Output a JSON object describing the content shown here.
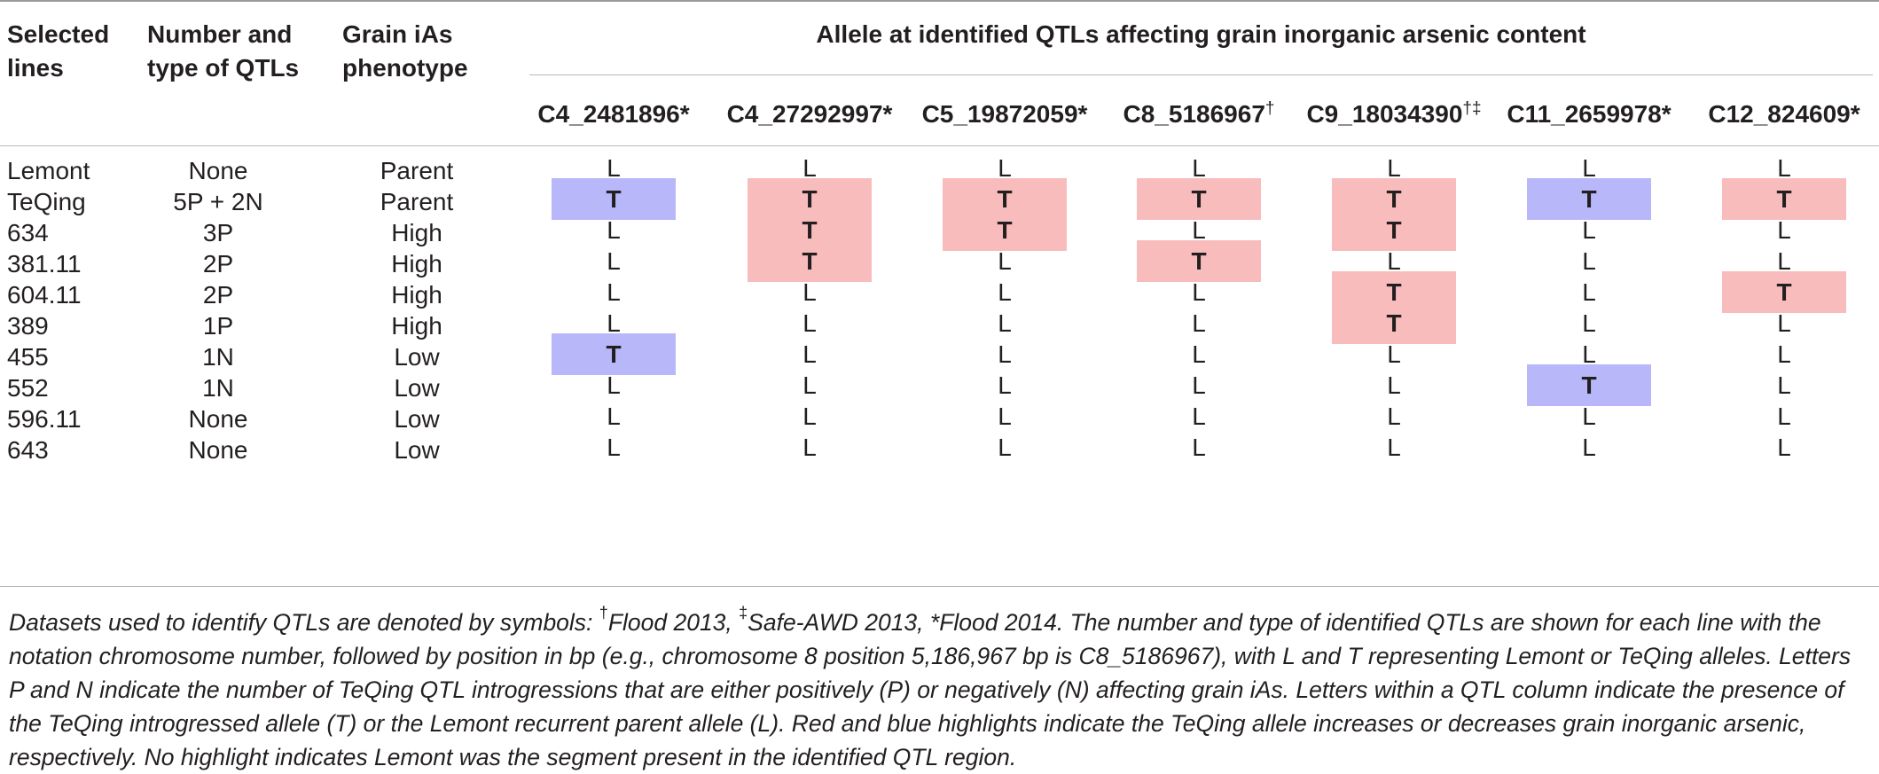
{
  "headers": {
    "selected_lines": "Selected\nlines",
    "qtl_number_type": "Number and\ntype of QTLs",
    "grain_phenotype": "Grain iAs\nphenotype",
    "allele_group": "Allele at identified QTLs affecting grain inorganic arsenic content",
    "columns": [
      {
        "name": "C4_2481896*",
        "mark": ""
      },
      {
        "name": "C4_27292997*",
        "mark": ""
      },
      {
        "name": "C5_19872059*",
        "mark": ""
      },
      {
        "name": "C8_5186967",
        "mark": "†"
      },
      {
        "name": "C9_18034390",
        "mark": "†‡"
      },
      {
        "name": "C11_2659978*",
        "mark": ""
      },
      {
        "name": "C12_824609*",
        "mark": ""
      }
    ]
  },
  "colors": {
    "red_highlight": "#f9bcbc",
    "blue_highlight": "#b7b7f9"
  },
  "rows": [
    {
      "line": "Lemont",
      "qtls": "None",
      "phenotype": "Parent",
      "alleles": [
        {
          "v": "L",
          "h": ""
        },
        {
          "v": "L",
          "h": ""
        },
        {
          "v": "L",
          "h": ""
        },
        {
          "v": "L",
          "h": ""
        },
        {
          "v": "L",
          "h": ""
        },
        {
          "v": "L",
          "h": ""
        },
        {
          "v": "L",
          "h": ""
        }
      ]
    },
    {
      "line": "TeQing",
      "qtls": "5P + 2N",
      "phenotype": "Parent",
      "alleles": [
        {
          "v": "T",
          "h": "blue"
        },
        {
          "v": "T",
          "h": "red"
        },
        {
          "v": "T",
          "h": "red"
        },
        {
          "v": "T",
          "h": "red"
        },
        {
          "v": "T",
          "h": "red"
        },
        {
          "v": "T",
          "h": "blue"
        },
        {
          "v": "T",
          "h": "red"
        }
      ]
    },
    {
      "line": "634",
      "qtls": "3P",
      "phenotype": "High",
      "alleles": [
        {
          "v": "L",
          "h": ""
        },
        {
          "v": "T",
          "h": "red"
        },
        {
          "v": "T",
          "h": "red"
        },
        {
          "v": "L",
          "h": ""
        },
        {
          "v": "T",
          "h": "red"
        },
        {
          "v": "L",
          "h": ""
        },
        {
          "v": "L",
          "h": ""
        }
      ]
    },
    {
      "line": "381.11",
      "qtls": "2P",
      "phenotype": "High",
      "alleles": [
        {
          "v": "L",
          "h": ""
        },
        {
          "v": "T",
          "h": "red"
        },
        {
          "v": "L",
          "h": ""
        },
        {
          "v": "T",
          "h": "red"
        },
        {
          "v": "L",
          "h": ""
        },
        {
          "v": "L",
          "h": ""
        },
        {
          "v": "L",
          "h": ""
        }
      ]
    },
    {
      "line": "604.11",
      "qtls": "2P",
      "phenotype": "High",
      "alleles": [
        {
          "v": "L",
          "h": ""
        },
        {
          "v": "L",
          "h": ""
        },
        {
          "v": "L",
          "h": ""
        },
        {
          "v": "L",
          "h": ""
        },
        {
          "v": "T",
          "h": "red"
        },
        {
          "v": "L",
          "h": ""
        },
        {
          "v": "T",
          "h": "red"
        }
      ]
    },
    {
      "line": "389",
      "qtls": "1P",
      "phenotype": "High",
      "alleles": [
        {
          "v": "L",
          "h": ""
        },
        {
          "v": "L",
          "h": ""
        },
        {
          "v": "L",
          "h": ""
        },
        {
          "v": "L",
          "h": ""
        },
        {
          "v": "T",
          "h": "red"
        },
        {
          "v": "L",
          "h": ""
        },
        {
          "v": "L",
          "h": ""
        }
      ]
    },
    {
      "line": "455",
      "qtls": "1N",
      "phenotype": "Low",
      "alleles": [
        {
          "v": "T",
          "h": "blue"
        },
        {
          "v": "L",
          "h": ""
        },
        {
          "v": "L",
          "h": ""
        },
        {
          "v": "L",
          "h": ""
        },
        {
          "v": "L",
          "h": ""
        },
        {
          "v": "L",
          "h": ""
        },
        {
          "v": "L",
          "h": ""
        }
      ]
    },
    {
      "line": "552",
      "qtls": "1N",
      "phenotype": "Low",
      "alleles": [
        {
          "v": "L",
          "h": ""
        },
        {
          "v": "L",
          "h": ""
        },
        {
          "v": "L",
          "h": ""
        },
        {
          "v": "L",
          "h": ""
        },
        {
          "v": "L",
          "h": ""
        },
        {
          "v": "T",
          "h": "blue"
        },
        {
          "v": "L",
          "h": ""
        }
      ]
    },
    {
      "line": "596.11",
      "qtls": "None",
      "phenotype": "Low",
      "alleles": [
        {
          "v": "L",
          "h": ""
        },
        {
          "v": "L",
          "h": ""
        },
        {
          "v": "L",
          "h": ""
        },
        {
          "v": "L",
          "h": ""
        },
        {
          "v": "L",
          "h": ""
        },
        {
          "v": "L",
          "h": ""
        },
        {
          "v": "L",
          "h": ""
        }
      ]
    },
    {
      "line": "643",
      "qtls": "None",
      "phenotype": "Low",
      "alleles": [
        {
          "v": "L",
          "h": ""
        },
        {
          "v": "L",
          "h": ""
        },
        {
          "v": "L",
          "h": ""
        },
        {
          "v": "L",
          "h": ""
        },
        {
          "v": "L",
          "h": ""
        },
        {
          "v": "L",
          "h": ""
        },
        {
          "v": "L",
          "h": ""
        }
      ]
    }
  ],
  "footnote": {
    "intro": "Datasets used to identify QTLs are denoted by symbols: ",
    "dagger": "†",
    "flood2013": "Flood 2013, ",
    "ddagger": "‡",
    "safe_awd": "Safe-AWD 2013, ",
    "star": "*",
    "flood2014": "Flood 2014.",
    "rest": " The number and type of identified QTLs are shown for each line with the notation chromosome number, followed by position in bp (e.g., chromosome 8 position 5,186,967 bp is C8_5186967), with L and T representing Lemont or TeQing alleles. Letters P and N indicate the number of TeQing QTL introgressions that are either positively (P) or negatively (N) affecting grain iAs. Letters within a QTL column indicate the presence of the TeQing introgressed allele (T) or the Lemont recurrent parent allele (L). Red and blue highlights indicate the TeQing allele increases or decreases grain inorganic arsenic, respectively. No highlight indicates Lemont was the segment present in the identified QTL region."
  }
}
